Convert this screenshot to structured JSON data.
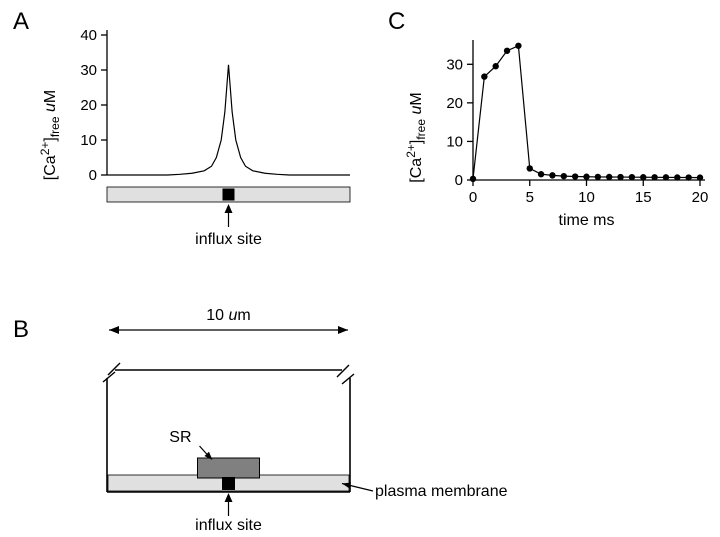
{
  "panelA": {
    "label": "A",
    "ylabel_prefix": "[Ca",
    "ylabel_sup": "2+",
    "ylabel_mid": "]",
    "ylabel_sub": "free",
    "ylabel_unit_italic": "u",
    "ylabel_unit": "M",
    "yticks": [
      0,
      10,
      20,
      30,
      40
    ],
    "ylim": [
      0,
      40
    ],
    "xlim": [
      0,
      10
    ],
    "curve": [
      [
        0,
        0
      ],
      [
        0.5,
        0
      ],
      [
        1,
        0
      ],
      [
        1.5,
        0
      ],
      [
        2,
        0
      ],
      [
        2.5,
        0
      ],
      [
        3,
        0.2
      ],
      [
        3.5,
        0.5
      ],
      [
        4,
        1.2
      ],
      [
        4.3,
        2.5
      ],
      [
        4.5,
        5
      ],
      [
        4.7,
        10
      ],
      [
        4.85,
        18
      ],
      [
        4.95,
        27
      ],
      [
        5,
        31.5
      ],
      [
        5.05,
        27
      ],
      [
        5.15,
        18
      ],
      [
        5.3,
        10
      ],
      [
        5.5,
        5
      ],
      [
        5.7,
        2.5
      ],
      [
        6,
        1.2
      ],
      [
        6.5,
        0.5
      ],
      [
        7,
        0.2
      ],
      [
        7.5,
        0
      ],
      [
        8,
        0
      ],
      [
        8.5,
        0
      ],
      [
        9,
        0
      ],
      [
        9.5,
        0
      ],
      [
        10,
        0
      ]
    ],
    "influx_label": "influx site",
    "axis_fontsize": 16,
    "tick_fontsize": 15,
    "label_fontsize": 16,
    "line_color": "#000000",
    "bar_fill": "#e0e0e0",
    "influx_fill": "#000000"
  },
  "panelB": {
    "label": "B",
    "width_label_value": "10 ",
    "width_label_italic": "u",
    "width_label_unit": "m",
    "sr_label": "SR",
    "influx_label": "influx site",
    "plasma_label": "plasma membrane",
    "line_color": "#000000",
    "plasma_fill": "#e0e0e0",
    "sr_fill": "#808080",
    "influx_fill": "#000000",
    "label_fontsize": 16
  },
  "panelC": {
    "label": "C",
    "ylabel_prefix": "[Ca",
    "ylabel_sup": "2+",
    "ylabel_mid": "]",
    "ylabel_sub": "free",
    "ylabel_unit_italic": "u",
    "ylabel_unit": "M",
    "xlabel": "time ms",
    "yticks": [
      0,
      10,
      20,
      30
    ],
    "ylim": [
      0,
      35
    ],
    "xticks": [
      0,
      5,
      10,
      15,
      20
    ],
    "xlim": [
      0,
      20
    ],
    "points": [
      [
        0,
        0.3
      ],
      [
        1,
        26.8
      ],
      [
        2,
        29.5
      ],
      [
        3,
        33.5
      ],
      [
        4,
        34.8
      ],
      [
        5,
        3.0
      ],
      [
        6,
        1.5
      ],
      [
        7,
        1.2
      ],
      [
        8,
        1.0
      ],
      [
        9,
        0.9
      ],
      [
        10,
        0.85
      ],
      [
        11,
        0.8
      ],
      [
        12,
        0.78
      ],
      [
        13,
        0.76
      ],
      [
        14,
        0.74
      ],
      [
        15,
        0.72
      ],
      [
        16,
        0.7
      ],
      [
        17,
        0.68
      ],
      [
        18,
        0.66
      ],
      [
        19,
        0.64
      ],
      [
        20,
        0.62
      ]
    ],
    "marker_size": 3.2,
    "line_color": "#000000",
    "marker_fill": "#000000",
    "axis_fontsize": 16,
    "tick_fontsize": 15
  }
}
